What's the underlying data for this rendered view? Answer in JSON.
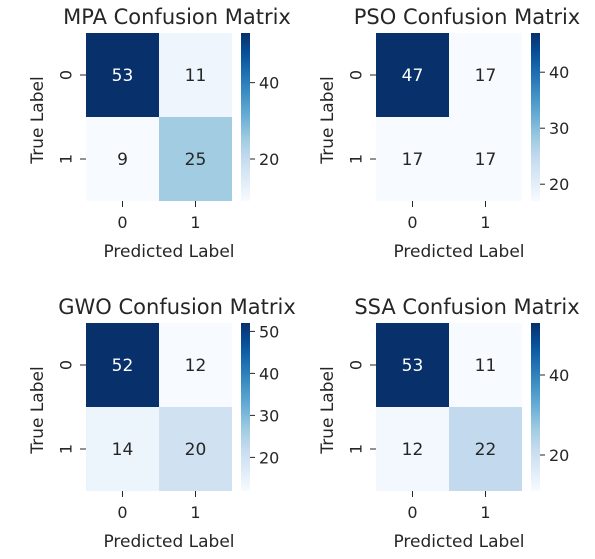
{
  "chart_data": [
    {
      "type": "heatmap",
      "title": "MPA Confusion Matrix",
      "xlabel": "Predicted Label",
      "ylabel": "True Label",
      "x_categories": [
        "0",
        "1"
      ],
      "y_categories": [
        "0",
        "1"
      ],
      "values": [
        [
          53,
          11
        ],
        [
          9,
          25
        ]
      ],
      "colormap": "Blues",
      "colorbar_ticks": [
        "20",
        "40"
      ]
    },
    {
      "type": "heatmap",
      "title": "PSO Confusion Matrix",
      "xlabel": "Predicted Label",
      "ylabel": "True Label",
      "x_categories": [
        "0",
        "1"
      ],
      "y_categories": [
        "0",
        "1"
      ],
      "values": [
        [
          47,
          17
        ],
        [
          17,
          17
        ]
      ],
      "colormap": "Blues",
      "colorbar_ticks": [
        "20",
        "30",
        "40"
      ]
    },
    {
      "type": "heatmap",
      "title": "GWO Confusion Matrix",
      "xlabel": "Predicted Label",
      "ylabel": "True Label",
      "x_categories": [
        "0",
        "1"
      ],
      "y_categories": [
        "0",
        "1"
      ],
      "values": [
        [
          52,
          12
        ],
        [
          14,
          20
        ]
      ],
      "colormap": "Blues",
      "colorbar_ticks": [
        "20",
        "30",
        "40",
        "50"
      ]
    },
    {
      "type": "heatmap",
      "title": "SSA Confusion Matrix",
      "xlabel": "Predicted Label",
      "ylabel": "True Label",
      "x_categories": [
        "0",
        "1"
      ],
      "y_categories": [
        "0",
        "1"
      ],
      "values": [
        [
          53,
          11
        ],
        [
          12,
          22
        ]
      ],
      "colormap": "Blues",
      "colorbar_ticks": [
        "20",
        "40"
      ]
    }
  ]
}
